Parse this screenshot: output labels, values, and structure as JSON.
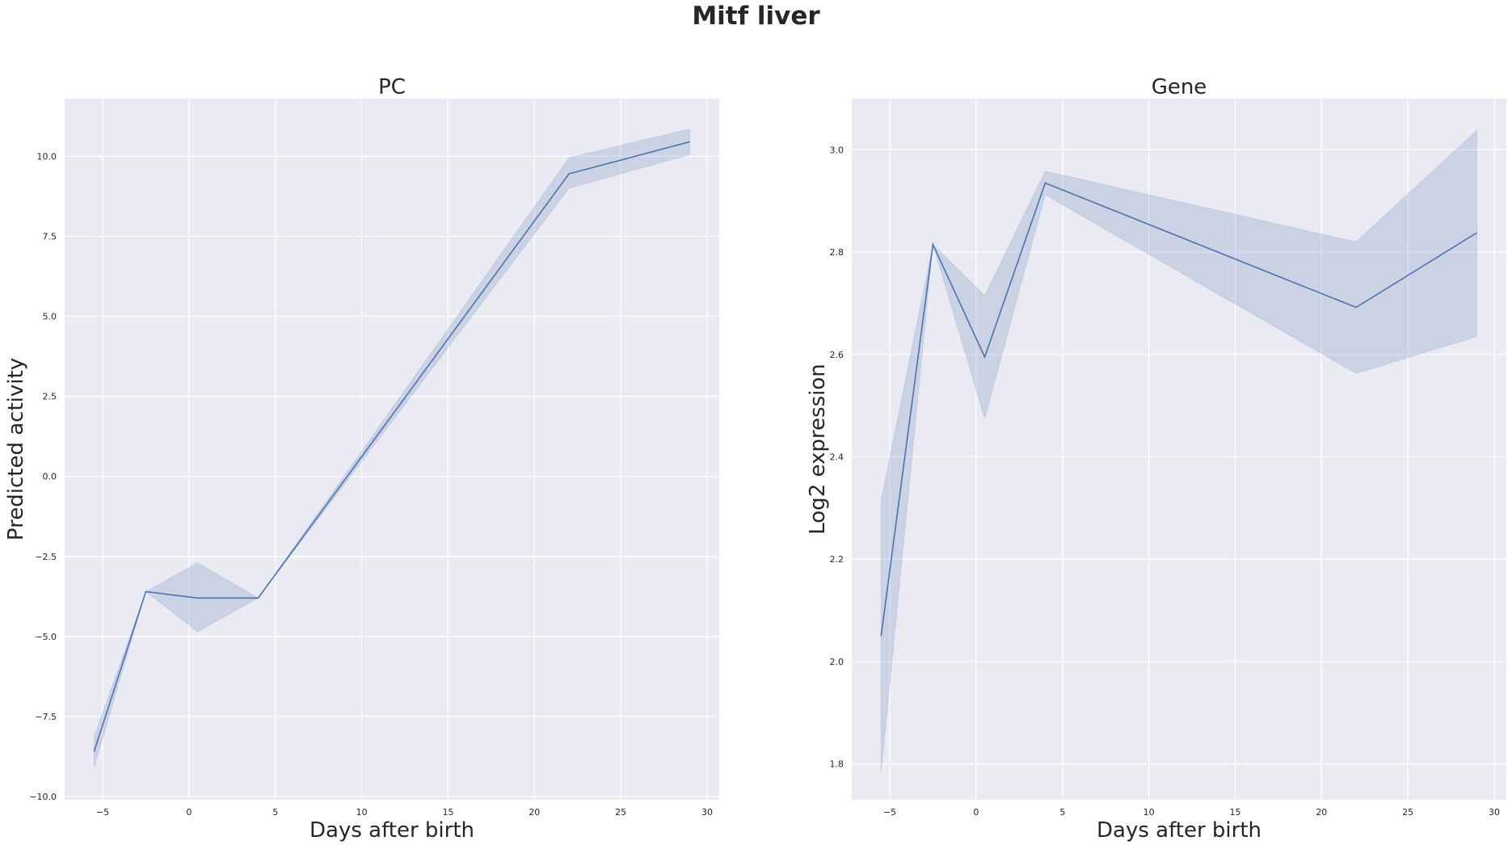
{
  "suptitle": "Mitf liver",
  "colors": {
    "line": "#4c72b0",
    "band": "#4c72b0",
    "panel_bg": "#eaeaf2",
    "grid": "#ffffff",
    "text": "#262626"
  },
  "chart_data": [
    {
      "type": "line",
      "title": "PC",
      "xlabel": "Days after birth",
      "ylabel": "Predicted activity",
      "xlim": [
        -7.2,
        30.7
      ],
      "ylim": [
        -10.1,
        11.8
      ],
      "xticks": [
        -5,
        0,
        5,
        10,
        15,
        20,
        25,
        30
      ],
      "xtick_labels": [
        "−5",
        "0",
        "5",
        "10",
        "15",
        "20",
        "25",
        "30"
      ],
      "yticks": [
        -10,
        -7.5,
        -5,
        -2.5,
        0,
        2.5,
        5,
        7.5,
        10
      ],
      "ytick_labels": [
        "−10.0",
        "−7.5",
        "−5.0",
        "−2.5",
        "0.0",
        "2.5",
        "5.0",
        "7.5",
        "10.0"
      ],
      "grid": true,
      "x": [
        -5.5,
        -2.5,
        0.5,
        4,
        22,
        29
      ],
      "y": [
        -8.6,
        -3.6,
        -3.8,
        -3.8,
        9.45,
        10.45
      ],
      "ci_lower": [
        -9.1,
        -3.6,
        -4.85,
        -3.8,
        9.0,
        10.05
      ],
      "ci_upper": [
        -8.15,
        -3.6,
        -2.7,
        -3.8,
        9.95,
        10.85
      ]
    },
    {
      "type": "line",
      "title": "Gene",
      "xlabel": "Days after birth",
      "ylabel": "Log2 expression",
      "xlim": [
        -7.2,
        30.7
      ],
      "ylim": [
        1.73,
        3.1
      ],
      "xticks": [
        -5,
        0,
        5,
        10,
        15,
        20,
        25,
        30
      ],
      "xtick_labels": [
        "−5",
        "0",
        "5",
        "10",
        "15",
        "20",
        "25",
        "30"
      ],
      "yticks": [
        1.8,
        2.0,
        2.2,
        2.4,
        2.6,
        2.8,
        3.0
      ],
      "ytick_labels": [
        "1.8",
        "2.0",
        "2.2",
        "2.4",
        "2.6",
        "2.8",
        "3.0"
      ],
      "grid": true,
      "x": [
        -5.5,
        -2.5,
        0.5,
        4,
        22,
        29
      ],
      "y": [
        2.05,
        2.815,
        2.595,
        2.935,
        2.692,
        2.838
      ],
      "ci_lower": [
        1.785,
        2.815,
        2.475,
        2.912,
        2.563,
        2.635
      ],
      "ci_upper": [
        2.315,
        2.815,
        2.715,
        2.958,
        2.82,
        3.038
      ]
    }
  ]
}
